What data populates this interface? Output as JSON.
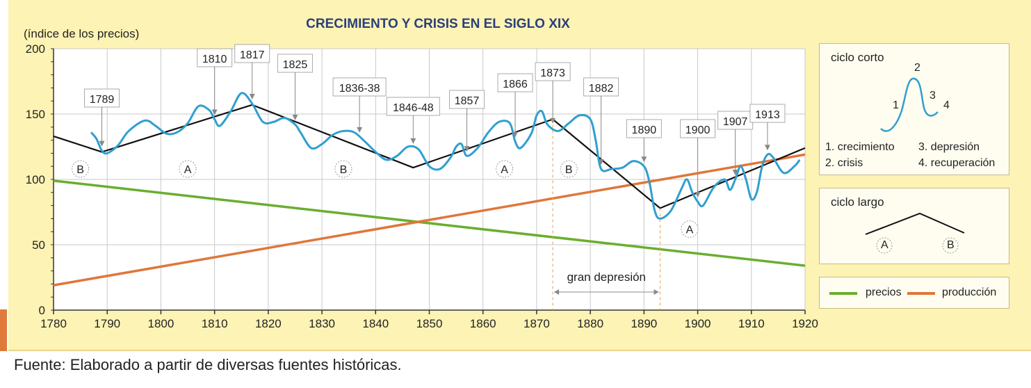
{
  "chart_data": {
    "type": "line",
    "title": "CRECIMIENTO Y CRISIS EN EL SIGLO XIX",
    "ylabel": "(índice de los precios)",
    "xlim": [
      1780,
      1920
    ],
    "ylim": [
      0,
      200
    ],
    "x_ticks": [
      "1780",
      "1790",
      "1800",
      "1810",
      "1820",
      "1830",
      "1840",
      "1850",
      "1860",
      "1870",
      "1880",
      "1890",
      "1900",
      "1910",
      "1920"
    ],
    "y_ticks": [
      "0",
      "50",
      "100",
      "150",
      "200"
    ],
    "grid": true,
    "series": [
      {
        "name": "precios",
        "color": "#6aae2e",
        "x": [
          1780,
          1920
        ],
        "values": [
          99,
          34
        ]
      },
      {
        "name": "producción",
        "color": "#e0763a",
        "x": [
          1780,
          1920
        ],
        "values": [
          19,
          119
        ]
      },
      {
        "x": [
          1780,
          1789,
          1817,
          1847,
          1873,
          1893,
          1920
        ],
        "values": [
          133,
          121,
          157,
          109,
          146,
          78,
          124
        ],
        "color": "#111111"
      },
      {
        "color": "#2f9fcf",
        "x": [
          1787,
          1788,
          1789,
          1790,
          1792,
          1794,
          1797,
          1799,
          1801,
          1803,
          1805,
          1807,
          1809,
          1810,
          1811,
          1813,
          1815,
          1817,
          1819,
          1821,
          1823,
          1825,
          1826,
          1828,
          1830,
          1832,
          1834,
          1836,
          1838,
          1840,
          1842,
          1844,
          1846,
          1848,
          1850,
          1852,
          1854,
          1855,
          1856,
          1857,
          1859,
          1861,
          1863,
          1865,
          1866,
          1867,
          1869,
          1870,
          1871,
          1872,
          1874,
          1876,
          1878,
          1880,
          1881,
          1882,
          1884,
          1886,
          1888,
          1890,
          1891,
          1892,
          1893,
          1895,
          1897,
          1898,
          1899,
          1900,
          1901,
          1903,
          1905,
          1906,
          1907,
          1908,
          1909,
          1910,
          1911,
          1912,
          1913,
          1914,
          1916,
          1918,
          1919
        ],
        "values": [
          136,
          131,
          122,
          120,
          126,
          137,
          145,
          141,
          135,
          136,
          143,
          156,
          153,
          146,
          141,
          152,
          166,
          158,
          144,
          144,
          147,
          142,
          136,
          124,
          127,
          134,
          137,
          136,
          129,
          121,
          115,
          118,
          125,
          123,
          110,
          108,
          117,
          125,
          127,
          118,
          124,
          136,
          144,
          143,
          129,
          124,
          135,
          149,
          152,
          142,
          137,
          143,
          149,
          146,
          130,
          108,
          108,
          109,
          114,
          110,
          98,
          76,
          70,
          76,
          93,
          100,
          90,
          83,
          80,
          94,
          100,
          92,
          100,
          110,
          100,
          85,
          90,
          110,
          119,
          117,
          105,
          110,
          115
        ]
      }
    ],
    "annotations": [
      "1789",
      "1810",
      "1817",
      "1825",
      "1836-38",
      "1846-48",
      "1857",
      "1866",
      "1873",
      "1882",
      "1890",
      "1900",
      "1907",
      "1913"
    ],
    "annotation_years": [
      1789,
      1810,
      1817,
      1825,
      1837,
      1847,
      1857,
      1866,
      1873,
      1882,
      1890,
      1900,
      1907,
      1913
    ],
    "phase_labels": [
      {
        "label": "B",
        "x": 1785,
        "y": 108
      },
      {
        "label": "A",
        "x": 1805,
        "y": 108
      },
      {
        "label": "B",
        "x": 1834,
        "y": 108
      },
      {
        "label": "A",
        "x": 1864,
        "y": 108
      },
      {
        "label": "B",
        "x": 1876,
        "y": 108
      },
      {
        "label": "A",
        "x": 1898.5,
        "y": 62
      }
    ],
    "period_label": "gran depresión",
    "period_range": [
      1873,
      1893
    ]
  },
  "legend": {
    "short_cycle_title": "ciclo corto",
    "short_cycle_numbers": [
      "1",
      "2",
      "3",
      "4"
    ],
    "short_cycle_items": [
      "1. crecimiento",
      "2. crisis",
      "3. depresión",
      "4. recuperación"
    ],
    "long_cycle_title": "ciclo largo",
    "long_cycle_phases": [
      "A",
      "B"
    ],
    "series_legend": [
      {
        "label": "precios",
        "color": "#6aae2e"
      },
      {
        "label": "producción",
        "color": "#e0763a"
      }
    ]
  },
  "source": "Fuente: Elaborado a partir de diversas fuentes históricas."
}
